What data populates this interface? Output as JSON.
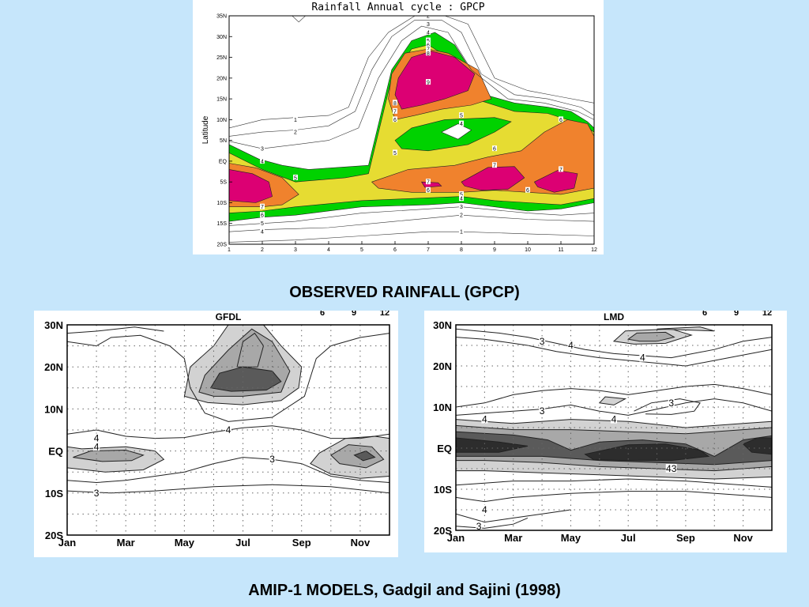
{
  "colors": {
    "page_background": "#c6e6fb",
    "panel_background": "#ffffff",
    "green": "#00d200",
    "yellow": "#e6dc32",
    "orange": "#f0822d",
    "magenta": "#dc0073",
    "grey_light": "#d2d2d2",
    "grey_mid": "#a8a8a8",
    "grey_dark": "#5a5a5a",
    "grey_darkest": "#2d2d2d",
    "contour_line": "#555555",
    "caption_text": "#000000"
  },
  "captions": {
    "observed": "OBSERVED RAINFALL (GPCP)",
    "models": "AMIP-1 MODELS, Gadgil and Sajini (1998)"
  },
  "chart_data": [
    {
      "id": "gpcp",
      "type": "heatmap",
      "style": "filled-contour",
      "title": "Rainfall Annual cycle : GPCP",
      "xlabel": "",
      "ylabel": "Latitude",
      "x_ticks": [
        "1",
        "2",
        "3",
        "4",
        "5",
        "6",
        "7",
        "8",
        "9",
        "10",
        "11",
        "12"
      ],
      "y_ticks": [
        "20S",
        "15S",
        "10S",
        "5S",
        "EQ",
        "5N",
        "10N",
        "15N",
        "20N",
        "25N",
        "30N",
        "35N"
      ],
      "xlim": [
        1,
        12
      ],
      "ylim": [
        -20,
        35
      ],
      "grid": false,
      "contour_levels": [
        "1",
        "2",
        "3",
        "4",
        "5",
        "6",
        "7",
        "8",
        "9"
      ],
      "filled_levels": [
        {
          "level": 4,
          "color": "green"
        },
        {
          "level": 5,
          "color": "yellow"
        },
        {
          "level": 6,
          "color": "orange"
        },
        {
          "level": 7,
          "color": "magenta"
        }
      ],
      "features": [
        {
          "name": "monsoon rainfall maximum",
          "x_center": 7,
          "lat_center": 21,
          "max_level": 9
        },
        {
          "name": "southern hemisphere maximum",
          "x_center": 1,
          "lat_center": -6,
          "max_level": 7
        },
        {
          "name": "equatorial maximum",
          "x_center": 9,
          "lat_center": -3,
          "max_level": 7
        },
        {
          "name": "equatorial maximum",
          "x_center": 11,
          "lat_center": -5,
          "max_level": 7
        },
        {
          "name": "minimum",
          "x_center": 7.8,
          "lat_center": 7,
          "max_level": 3
        }
      ],
      "contour_labels": [
        {
          "text": "1",
          "x": 3,
          "lat": 10
        },
        {
          "text": "2",
          "x": 3,
          "lat": 7
        },
        {
          "text": "3",
          "x": 2,
          "lat": 3
        },
        {
          "text": "4",
          "x": 2,
          "lat": 0
        },
        {
          "text": "5",
          "x": 3,
          "lat": -4
        },
        {
          "text": "7",
          "x": 2,
          "lat": -11
        },
        {
          "text": "6",
          "x": 2,
          "lat": -13
        },
        {
          "text": "5",
          "x": 2,
          "lat": -15
        },
        {
          "text": "4",
          "x": 2,
          "lat": -17
        },
        {
          "text": "2",
          "x": 7,
          "lat": 35
        },
        {
          "text": "3",
          "x": 7,
          "lat": 33
        },
        {
          "text": "4",
          "x": 7,
          "lat": 31
        },
        {
          "text": "5",
          "x": 7,
          "lat": 29
        },
        {
          "text": "6",
          "x": 7,
          "lat": 28
        },
        {
          "text": "7",
          "x": 7,
          "lat": 27
        },
        {
          "text": "8",
          "x": 7,
          "lat": 26
        },
        {
          "text": "9",
          "x": 7,
          "lat": 19
        },
        {
          "text": "8",
          "x": 6,
          "lat": 14
        },
        {
          "text": "7",
          "x": 6,
          "lat": 12
        },
        {
          "text": "6",
          "x": 6,
          "lat": 10
        },
        {
          "text": "5",
          "x": 8,
          "lat": 11
        },
        {
          "text": "4",
          "x": 8,
          "lat": 9
        },
        {
          "text": "5",
          "x": 6,
          "lat": 2
        },
        {
          "text": "6",
          "x": 9,
          "lat": 3
        },
        {
          "text": "7",
          "x": 9,
          "lat": -1
        },
        {
          "text": "6",
          "x": 11,
          "lat": 10
        },
        {
          "text": "7",
          "x": 11,
          "lat": -2
        },
        {
          "text": "7",
          "x": 7,
          "lat": -5
        },
        {
          "text": "6",
          "x": 7,
          "lat": -7
        },
        {
          "text": "6",
          "x": 10,
          "lat": -7
        },
        {
          "text": "5",
          "x": 8,
          "lat": -8
        },
        {
          "text": "4",
          "x": 8,
          "lat": -9
        },
        {
          "text": "3",
          "x": 8,
          "lat": -11
        },
        {
          "text": "2",
          "x": 8,
          "lat": -13
        },
        {
          "text": "1",
          "x": 8,
          "lat": -17
        }
      ]
    },
    {
      "id": "gfdl",
      "type": "heatmap",
      "style": "shaded-contour",
      "title": "GFDL",
      "xlabel": "",
      "ylabel": "",
      "x_ticks": [
        "Jan",
        "Mar",
        "May",
        "Jul",
        "Sep",
        "Nov"
      ],
      "x_tick_months": [
        1,
        3,
        5,
        7,
        9,
        11
      ],
      "y_ticks": [
        "20S",
        "10S",
        "EQ",
        "10N",
        "20N",
        "30N"
      ],
      "xlim": [
        1,
        12
      ],
      "ylim": [
        -20,
        30
      ],
      "grid": true,
      "top_cut_labels": [
        "6",
        "9",
        "12"
      ],
      "contour_labels": [
        {
          "text": "4",
          "month": 2,
          "lat": 3
        },
        {
          "text": "4",
          "month": 2,
          "lat": 1
        },
        {
          "text": "3",
          "month": 2,
          "lat": -10
        },
        {
          "text": "4",
          "month": 6.5,
          "lat": 5
        },
        {
          "text": "3",
          "month": 8,
          "lat": -2
        }
      ]
    },
    {
      "id": "lmd",
      "type": "heatmap",
      "style": "shaded-contour",
      "title": "LMD",
      "xlabel": "",
      "ylabel": "",
      "x_ticks": [
        "Jan",
        "Mar",
        "May",
        "Jul",
        "Sep",
        "Nov"
      ],
      "x_tick_months": [
        1,
        3,
        5,
        7,
        9,
        11
      ],
      "y_ticks": [
        "20S",
        "10S",
        "EQ",
        "10N",
        "20N",
        "30N"
      ],
      "xlim": [
        1,
        12
      ],
      "ylim": [
        -20,
        30
      ],
      "grid": true,
      "top_cut_labels": [
        "6",
        "9",
        "12"
      ],
      "contour_labels": [
        {
          "text": "3",
          "month": 4,
          "lat": 26
        },
        {
          "text": "4",
          "month": 5,
          "lat": 25
        },
        {
          "text": "4",
          "month": 7.5,
          "lat": 22
        },
        {
          "text": "3",
          "month": 8.5,
          "lat": 11
        },
        {
          "text": "4",
          "month": 2,
          "lat": 7
        },
        {
          "text": "3",
          "month": 4,
          "lat": 9
        },
        {
          "text": "4",
          "month": 6.5,
          "lat": 7
        },
        {
          "text": "43",
          "month": 8.5,
          "lat": -5
        },
        {
          "text": "4",
          "month": 2,
          "lat": -15
        },
        {
          "text": "3",
          "month": 1.8,
          "lat": -19
        }
      ]
    }
  ]
}
